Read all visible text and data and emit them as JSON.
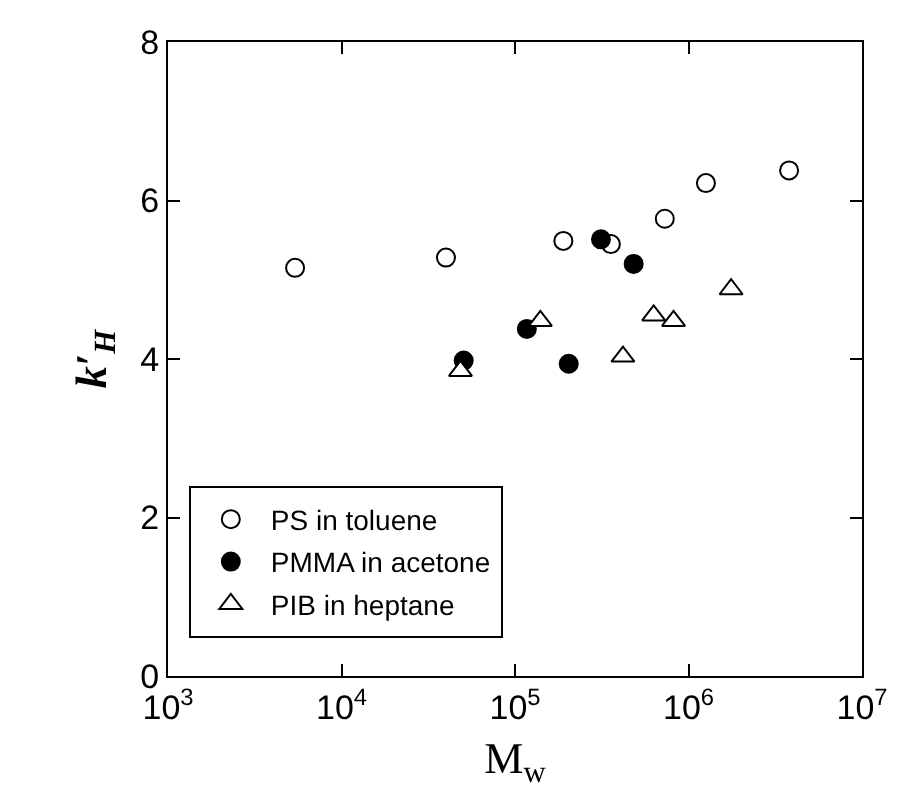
{
  "chart_data": {
    "type": "scatter",
    "xlabel": "M$_{w}$",
    "ylabel": "k′$_{H}$",
    "log": "x",
    "xlim": [
      1000,
      10000000
    ],
    "xticks": [
      {
        "value": 1000,
        "label": "10$^{3}$"
      },
      {
        "value": 10000,
        "label": "10$^{4}$"
      },
      {
        "value": 100000,
        "label": "10$^{5}$"
      },
      {
        "value": 1000000,
        "label": "10$^{6}$"
      },
      {
        "value": 10000000,
        "label": "10$^{7}$"
      }
    ],
    "ylim": [
      0,
      8
    ],
    "yticks": [
      0,
      2,
      4,
      6,
      8
    ],
    "legend": "bottom left",
    "series": [
      {
        "name": "PS in toluene",
        "color": "#ffffff",
        "marker": "circle",
        "x": [
          5400,
          40000,
          190000,
          357000,
          730000,
          1260000,
          3800000
        ],
        "values": [
          5.15,
          5.28,
          5.49,
          5.45,
          5.77,
          6.22,
          6.38
        ]
      },
      {
        "name": "PMMA in acetone",
        "color": "#000000",
        "marker": "circle",
        "x": [
          50600,
          117000,
          204000,
          313000,
          483000
        ],
        "values": [
          3.98,
          4.38,
          3.94,
          5.51,
          5.2
        ]
      },
      {
        "name": "PIB in heptane",
        "color": "#ffffff",
        "marker": "triangle",
        "x": [
          48500,
          140000,
          419000,
          630000,
          820000,
          1760000
        ],
        "values": [
          3.85,
          4.48,
          4.03,
          4.55,
          4.48,
          4.88
        ]
      }
    ]
  }
}
